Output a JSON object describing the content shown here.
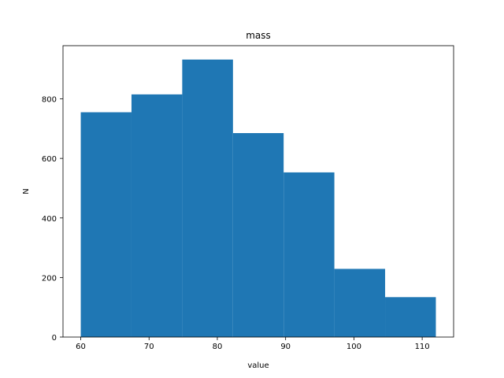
{
  "chart_data": {
    "type": "histogram",
    "title": "mass",
    "xlabel": "value",
    "ylabel": "N",
    "bin_edges": [
      60,
      67.43,
      74.86,
      82.29,
      89.71,
      97.14,
      104.57,
      112
    ],
    "counts": [
      755,
      815,
      932,
      685,
      553,
      229,
      134
    ],
    "xlim": [
      57.4,
      114.6
    ],
    "ylim": [
      0,
      978.6
    ],
    "xticks": [
      60,
      70,
      80,
      90,
      100,
      110
    ],
    "yticks": [
      0,
      200,
      400,
      600,
      800
    ],
    "bar_color": "#1f77b4",
    "grid": false
  }
}
